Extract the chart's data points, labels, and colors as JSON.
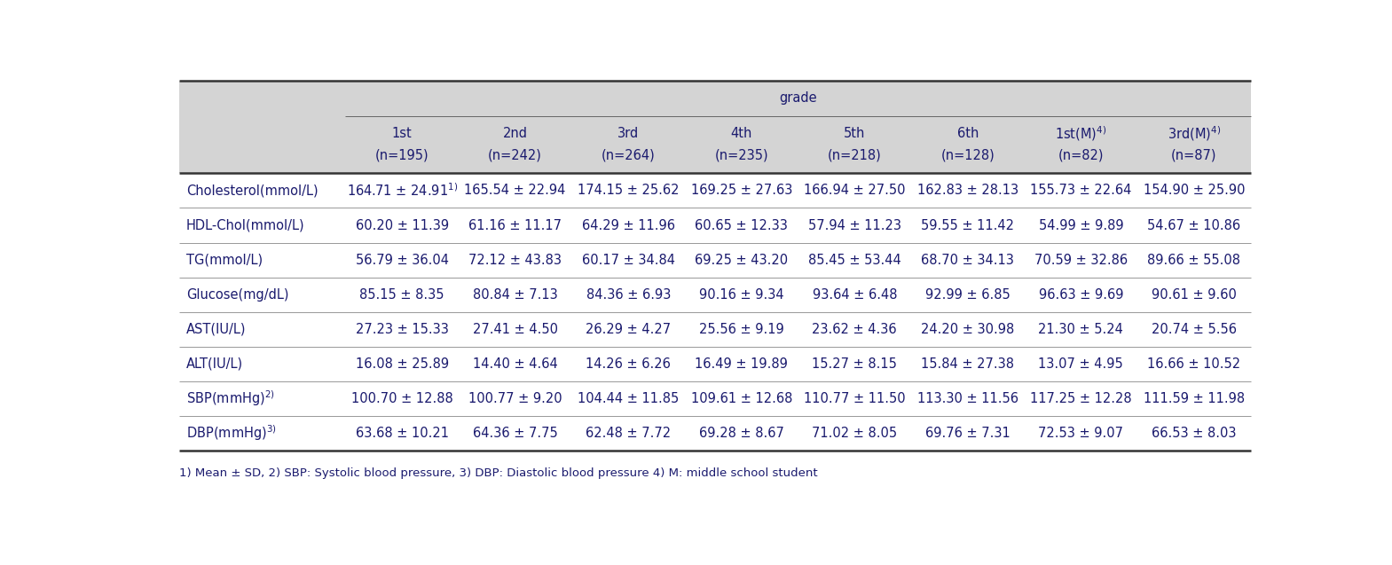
{
  "title": "grade",
  "col_headers_line1": [
    "1st",
    "2nd",
    "3rd",
    "4th",
    "5th",
    "6th",
    "1st(M)$^{4)}$",
    "3rd(M)$^{4)}$"
  ],
  "col_headers_line2": [
    "(n=195)",
    "(n=242)",
    "(n=264)",
    "(n=235)",
    "(n=218)",
    "(n=128)",
    "(n=82)",
    "(n=87)"
  ],
  "row_labels": [
    "Cholesterol(mmol/L)",
    "HDL-Chol(mmol/L)",
    "TG(mmol/L)",
    "Glucose(mg/dL)",
    "AST(IU/L)",
    "ALT(IU/L)",
    "SBP(mmHg)$^{2)}$",
    "DBP(mmHg)$^{3)}$"
  ],
  "data": [
    [
      "164.71 ± 24.91$^{1)}$",
      "165.54 ± 22.94",
      "174.15 ± 25.62",
      "169.25 ± 27.63",
      "166.94 ± 27.50",
      "162.83 ± 28.13",
      "155.73 ± 22.64",
      "154.90 ± 25.90"
    ],
    [
      "60.20 ± 11.39",
      "61.16 ± 11.17",
      "64.29 ± 11.96",
      "60.65 ± 12.33",
      "57.94 ± 11.23",
      "59.55 ± 11.42",
      "54.99 ± 9.89",
      "54.67 ± 10.86"
    ],
    [
      "56.79 ± 36.04",
      "72.12 ± 43.83",
      "60.17 ± 34.84",
      "69.25 ± 43.20",
      "85.45 ± 53.44",
      "68.70 ± 34.13",
      "70.59 ± 32.86",
      "89.66 ± 55.08"
    ],
    [
      "85.15 ± 8.35",
      "80.84 ± 7.13",
      "84.36 ± 6.93",
      "90.16 ± 9.34",
      "93.64 ± 6.48",
      "92.99 ± 6.85",
      "96.63 ± 9.69",
      "90.61 ± 9.60"
    ],
    [
      "27.23 ± 15.33",
      "27.41 ± 4.50",
      "26.29 ± 4.27",
      "25.56 ± 9.19",
      "23.62 ± 4.36",
      "24.20 ± 30.98",
      "21.30 ± 5.24",
      "20.74 ± 5.56"
    ],
    [
      "16.08 ± 25.89",
      "14.40 ± 4.64",
      "14.26 ± 6.26",
      "16.49 ± 19.89",
      "15.27 ± 8.15",
      "15.84 ± 27.38",
      "13.07 ± 4.95",
      "16.66 ± 10.52"
    ],
    [
      "100.70 ± 12.88",
      "100.77 ± 9.20",
      "104.44 ± 11.85",
      "109.61 ± 12.68",
      "110.77 ± 11.50",
      "113.30 ± 11.56",
      "117.25 ± 12.28",
      "111.59 ± 11.98"
    ],
    [
      "63.68 ± 10.21",
      "64.36 ± 7.75",
      "62.48 ± 7.72",
      "69.28 ± 8.67",
      "71.02 ± 8.05",
      "69.76 ± 7.31",
      "72.53 ± 9.07",
      "66.53 ± 8.03"
    ]
  ],
  "footnote": "1) Mean ± SD, 2) SBP: Systolic blood pressure, 3) DBP: Diastolic blood pressure 4) M: middle school student",
  "header_bg_color": "#d4d4d4",
  "body_bg_color": "#ffffff",
  "text_color": "#1a1a6e",
  "line_color": "#555555",
  "font_size": 10.5,
  "header_font_size": 10.5,
  "footnote_font_size": 9.5
}
